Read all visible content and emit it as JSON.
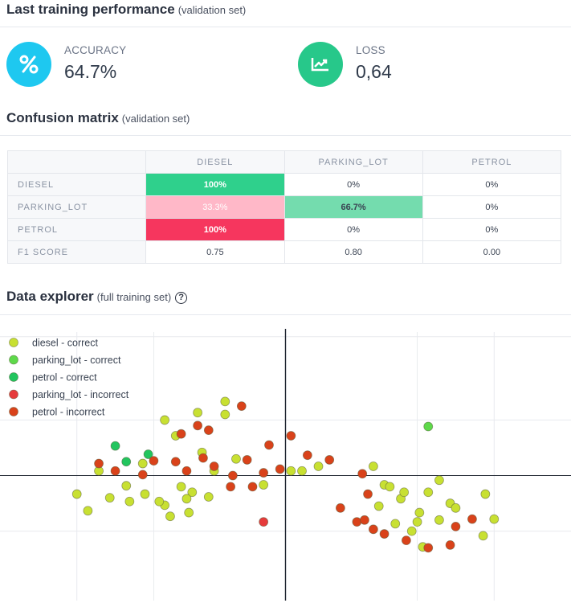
{
  "performance": {
    "title": "Last training performance",
    "subtitle": "(validation set)",
    "accuracy": {
      "label": "ACCURACY",
      "value": "64.7%",
      "icon": "percent-icon",
      "color": "#1ec8f0"
    },
    "loss": {
      "label": "LOSS",
      "value": "0,64",
      "icon": "chart-icon",
      "color": "#27c88a"
    }
  },
  "confusion": {
    "title": "Confusion matrix",
    "subtitle": "(validation set)",
    "columns": [
      "DIESEL",
      "PARKING_LOT",
      "PETROL"
    ],
    "rows": [
      {
        "label": "DIESEL",
        "cells": [
          "100%",
          "0%",
          "0%"
        ]
      },
      {
        "label": "PARKING_LOT",
        "cells": [
          "33.3%",
          "66.7%",
          "0%"
        ]
      },
      {
        "label": "PETROL",
        "cells": [
          "100%",
          "0%",
          "0%"
        ]
      }
    ],
    "f1": {
      "label": "F1 SCORE",
      "cells": [
        "0.75",
        "0.80",
        "0.00"
      ]
    },
    "colors": {
      "green": "#2fd08c",
      "lightgreen": "#74dcae",
      "pink": "#ffb8c8",
      "red": "#f6365e"
    }
  },
  "explorer": {
    "title": "Data explorer",
    "subtitle": "(full training set)",
    "help_icon": "question-circle-icon",
    "legend": [
      {
        "label": "diesel - correct",
        "color": "#c8e032"
      },
      {
        "label": "parking_lot - correct",
        "color": "#5ed94a"
      },
      {
        "label": "petrol - correct",
        "color": "#22c55e"
      },
      {
        "label": "parking_lot - incorrect",
        "color": "#e63b3b"
      },
      {
        "label": "petrol - incorrect",
        "color": "#d9421a"
      }
    ],
    "chart_data": {
      "type": "scatter",
      "xlim": [
        -2.6,
        2.6
      ],
      "ylim": [
        -1.35,
        1.55
      ],
      "series": [
        {
          "name": "diesel - correct",
          "points": [
            [
              -1.9,
              [
                -0.2
              ],
              -1.8,
              [
                -0.38
              ],
              -1.7,
              [
                0.05
              ],
              -1.6,
              [
                -0.24
              ],
              -1.42,
              [
                -0.28
              ],
              -1.45,
              [
                -0.11
              ],
              -1.3,
              [
                0.13
              ],
              -1.28,
              [
                -0.2
              ],
              -1.1,
              [
                -0.32
              ],
              -1.15,
              [
                -0.28
              ],
              -1.05,
              [
                -0.44
              ],
              -1.1,
              [
                0.6
              ],
              -1.0,
              [
                0.43
              ],
              -0.95,
              [
                -0.12
              ],
              -0.85,
              [
                -0.18
              ],
              -0.88,
              [
                -0.4
              ],
              -0.9,
              [
                -0.25
              ],
              -0.8,
              [
                0.68
              ],
              -0.76,
              [
                0.25
              ],
              -0.7,
              [
                -0.23
              ],
              -0.65,
              [
                0.05
              ],
              -0.55,
              [
                0.8
              ],
              -0.55,
              [
                0.66
              ],
              -0.45,
              [
                0.18
              ],
              -0.2,
              [
                -0.1
              ],
              0.05,
              [
                0.05
              ],
              0.15,
              [
                0.05
              ],
              0.3,
              [
                0.1
              ],
              0.8,
              [
                0.1
              ],
              0.85,
              [
                -0.33
              ],
              0.9,
              [
                -0.1
              ],
              0.95,
              [
                -0.12
              ],
              1.0,
              [
                -0.52
              ],
              1.05,
              [
                -0.25
              ],
              1.08,
              [
                -0.18
              ],
              1.2,
              [
                -0.5
              ],
              1.22,
              [
                -0.4
              ],
              1.15,
              [
                -0.6
              ],
              1.25,
              [
                -0.77
              ],
              1.3,
              [
                -0.18
              ],
              1.4,
              [
                -0.05
              ],
              1.4,
              [
                -0.48
              ],
              1.5,
              [
                -0.3
              ],
              1.55,
              [
                -0.35
              ],
              1.8,
              [
                -0.65
              ],
              1.82,
              [
                -0.2
              ],
              1.9,
              [
                -0.47
              ]
            ]
          ]
        },
        {
          "name": "parking_lot - correct",
          "points": [
            [
              1.3,
              0.53
            ]
          ]
        },
        {
          "name": "petrol - correct",
          "points": [
            [
              -1.55,
              0.32
            ],
            [
              -1.45,
              0.15
            ],
            [
              -1.25,
              0.23
            ]
          ]
        },
        {
          "name": "parking_lot - incorrect",
          "points": [
            [
              -0.2,
              -0.5
            ]
          ]
        },
        {
          "name": "petrol - incorrect",
          "points": [
            [
              -1.7,
              0.13
            ],
            [
              -1.55,
              0.05
            ],
            [
              -1.3,
              0.01
            ],
            [
              -1.2,
              0.16
            ],
            [
              -1.0,
              0.15
            ],
            [
              -0.95,
              0.45
            ],
            [
              -0.9,
              0.05
            ],
            [
              -0.8,
              0.54
            ],
            [
              -0.75,
              0.19
            ],
            [
              -0.7,
              0.49
            ],
            [
              -0.65,
              0.1
            ],
            [
              -0.5,
              -0.12
            ],
            [
              -0.48,
              0.0
            ],
            [
              -0.4,
              0.75
            ],
            [
              -0.35,
              0.17
            ],
            [
              -0.3,
              -0.12
            ],
            [
              -0.2,
              0.03
            ],
            [
              -0.15,
              0.33
            ],
            [
              -0.05,
              0.07
            ],
            [
              0.05,
              0.43
            ],
            [
              0.2,
              0.22
            ],
            [
              0.4,
              0.17
            ],
            [
              0.7,
              0.02
            ],
            [
              0.75,
              -0.2
            ],
            [
              0.5,
              -0.35
            ],
            [
              0.65,
              -0.5
            ],
            [
              0.72,
              -0.48
            ],
            [
              0.8,
              -0.58
            ],
            [
              0.9,
              -0.63
            ],
            [
              1.1,
              -0.7
            ],
            [
              1.3,
              -0.78
            ],
            [
              1.5,
              -0.75
            ],
            [
              1.55,
              -0.55
            ],
            [
              1.7,
              -0.47
            ]
          ]
        }
      ]
    }
  }
}
